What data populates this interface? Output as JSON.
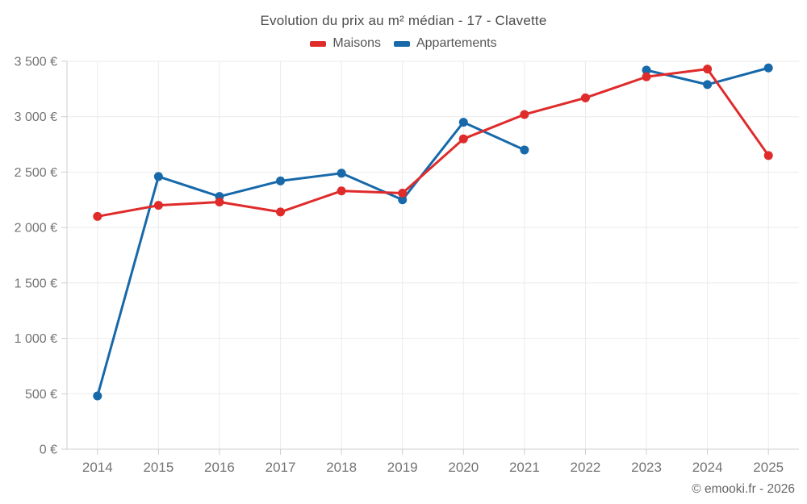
{
  "title": "Evolution du prix au m² médian - 17 - Clavette",
  "footer": {
    "copyright": "© emooki.fr - 2026"
  },
  "chart_data": {
    "type": "line",
    "title": "Evolution du prix au m² médian - 17 - Clavette",
    "categories": [
      "2014",
      "2015",
      "2016",
      "2017",
      "2018",
      "2019",
      "2020",
      "2021",
      "2022",
      "2023",
      "2024",
      "2025"
    ],
    "series": [
      {
        "name": "Maisons",
        "color": "#e02b2b",
        "values": [
          2100,
          2200,
          2230,
          2140,
          2330,
          2310,
          2800,
          3020,
          3170,
          3360,
          3430,
          2650
        ]
      },
      {
        "name": "Appartements",
        "color": "#1769aa",
        "values": [
          480,
          2460,
          2280,
          2420,
          2490,
          2250,
          2950,
          2700,
          null,
          3420,
          3290,
          3440
        ]
      }
    ],
    "xlabel": "",
    "ylabel": "",
    "ylim": [
      0,
      3500
    ],
    "y_ticks": [
      0,
      500,
      1000,
      1500,
      2000,
      2500,
      3000,
      3500
    ],
    "y_tick_suffix": " €",
    "grid": true,
    "legend_position": "top",
    "colors": {
      "grid": "#ebebeb",
      "axis": "#cfcfcf",
      "tick_label": "#747474",
      "title_text": "#4c4c4c"
    }
  }
}
